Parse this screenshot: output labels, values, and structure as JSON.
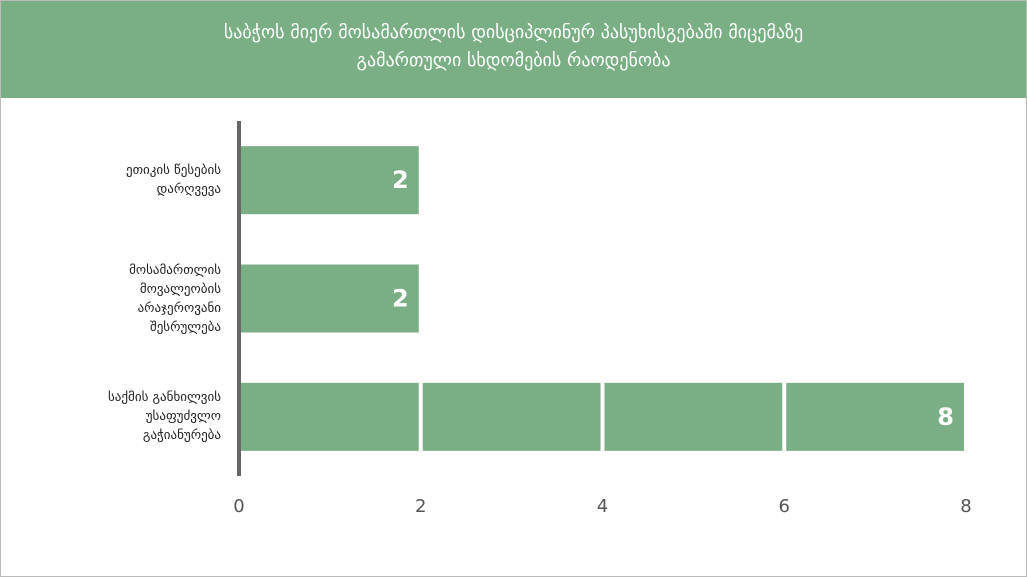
{
  "chart_data": {
    "type": "hbar",
    "title": "საბჭოს მიერ მოსამართლის დისციპლინურ პასუხისგებაში მიცემაზე გამართული სხდომების რაოდენობა",
    "categories": [
      "ეთიკის წესების დარღვევა",
      "მოსამართლის მოვალეობის არაჯეროვანი შესრულება",
      "საქმის განხილვის უსაფუძვლო გაჭიანურება"
    ],
    "values": [
      2,
      2,
      8
    ],
    "color": "#7aae84",
    "xlim": [
      0,
      8
    ],
    "xticks": [
      0,
      2,
      4,
      6,
      8
    ],
    "grid": true,
    "grid_color": "#ffffff"
  }
}
